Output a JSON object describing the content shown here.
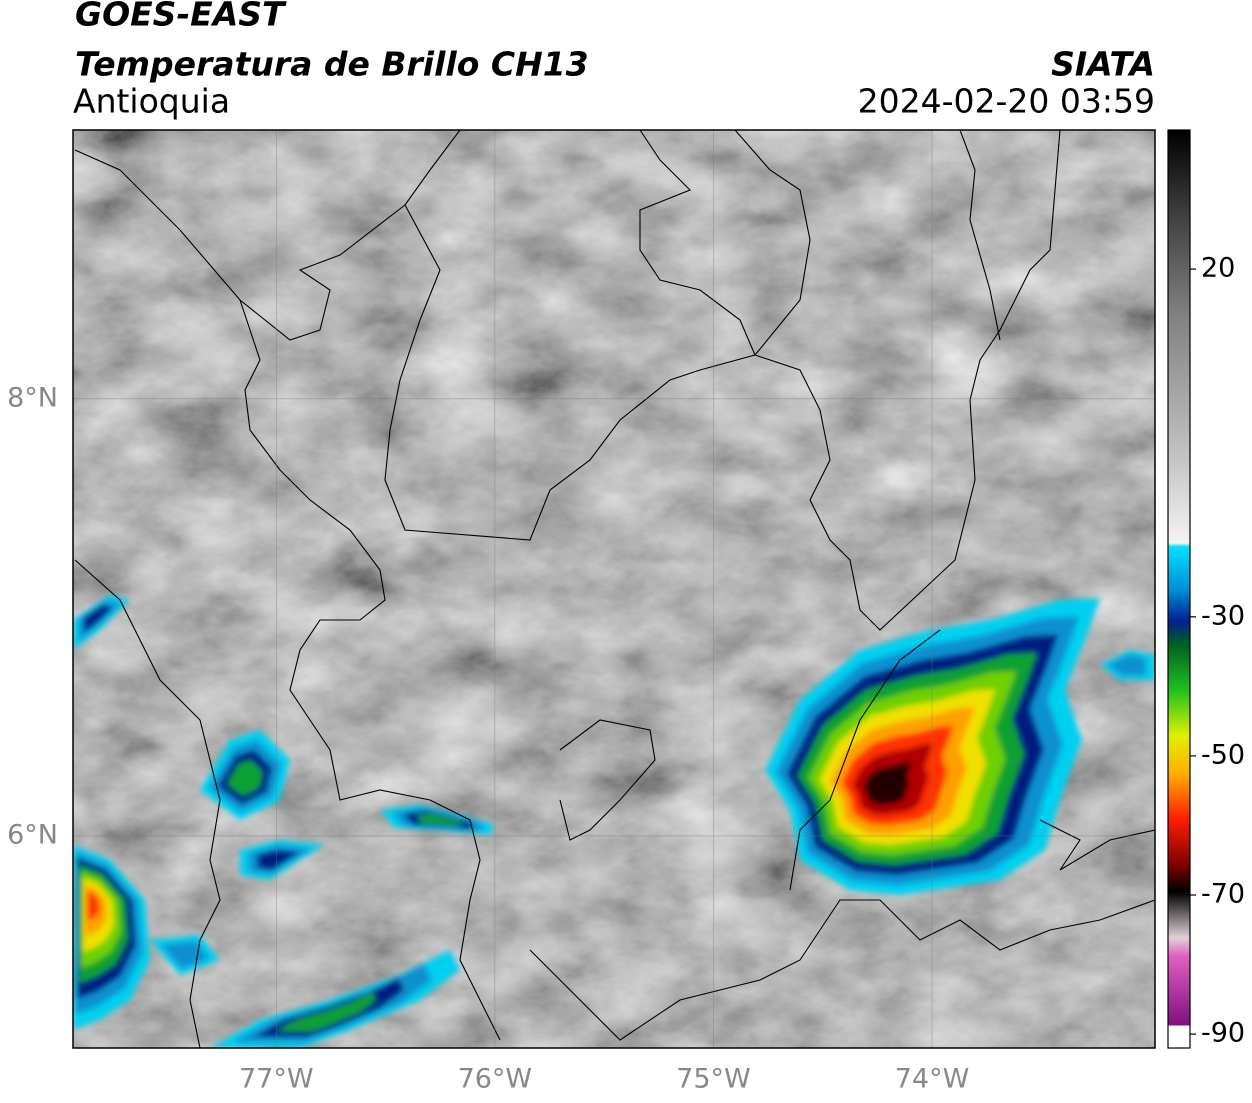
{
  "header": {
    "title": "GOES-EAST",
    "subtitle": "Temperatura de Brillo CH13",
    "region": "Antioquia",
    "source": "SIATA",
    "datetime": "2024-02-20 03:59"
  },
  "map": {
    "lon_range": [
      -77.93,
      -72.98
    ],
    "lat_range": [
      5.03,
      9.23
    ],
    "lon_ticks": [
      {
        "value": -77,
        "label": "77°W"
      },
      {
        "value": -76,
        "label": "76°W"
      },
      {
        "value": -75,
        "label": "75°W"
      },
      {
        "value": -74,
        "label": "74°W"
      }
    ],
    "lat_ticks": [
      {
        "value": 8,
        "label": "8°N"
      },
      {
        "value": 6,
        "label": "6°N"
      }
    ]
  },
  "colorbar": {
    "range": [
      -92,
      40
    ],
    "ticks": [
      20,
      -30,
      -50,
      -70,
      -90
    ]
  }
}
